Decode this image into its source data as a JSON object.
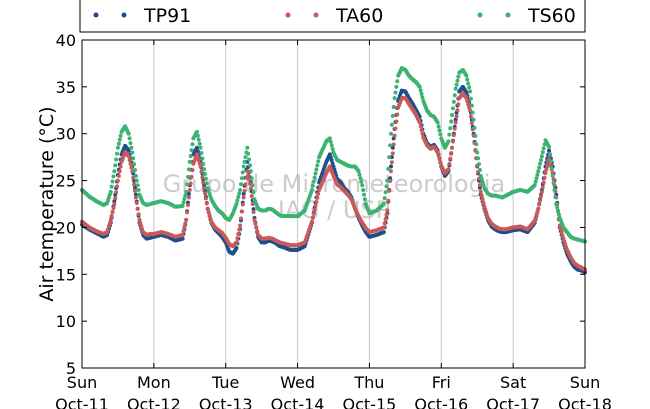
{
  "chart_data": {
    "type": "scatter",
    "title": "",
    "xlabel": "",
    "ylabel": "Air temperature (°C)",
    "ylim": [
      5,
      40
    ],
    "yticks": [
      5,
      10,
      15,
      20,
      25,
      30,
      35,
      40
    ],
    "xlim": [
      0,
      7
    ],
    "x_unit": "days since Sun Oct-11 00:00",
    "xtick_days": [
      "Sun",
      "Mon",
      "Tue",
      "Wed",
      "Thu",
      "Fri",
      "Sat",
      "Sun"
    ],
    "xtick_dates": [
      "Oct-11",
      "Oct-12",
      "Oct-13",
      "Oct-14",
      "Oct-15",
      "Oct-16",
      "Oct-17",
      "Oct-18"
    ],
    "grid": "vertical",
    "legend_position": "top",
    "watermark_line1": "Grupo de Micrometeorologia",
    "watermark_line2": "IAG / USP",
    "series": [
      {
        "name": "TP91",
        "color": "#1f4e8c",
        "x": [
          0.0,
          0.1,
          0.2,
          0.3,
          0.35,
          0.4,
          0.45,
          0.5,
          0.55,
          0.6,
          0.65,
          0.7,
          0.75,
          0.8,
          0.85,
          0.9,
          0.95,
          1.0,
          1.1,
          1.2,
          1.3,
          1.4,
          1.45,
          1.5,
          1.55,
          1.6,
          1.65,
          1.7,
          1.75,
          1.8,
          1.85,
          1.9,
          1.95,
          2.0,
          2.05,
          2.1,
          2.15,
          2.2,
          2.25,
          2.3,
          2.35,
          2.4,
          2.45,
          2.5,
          2.55,
          2.6,
          2.65,
          2.7,
          2.75,
          2.8,
          2.9,
          3.0,
          3.1,
          3.2,
          3.3,
          3.4,
          3.45,
          3.5,
          3.55,
          3.6,
          3.65,
          3.7,
          3.75,
          3.8,
          3.85,
          3.9,
          3.95,
          4.0,
          4.1,
          4.2,
          4.25,
          4.3,
          4.35,
          4.4,
          4.45,
          4.5,
          4.55,
          4.6,
          4.65,
          4.7,
          4.75,
          4.8,
          4.85,
          4.9,
          4.95,
          5.0,
          5.05,
          5.1,
          5.15,
          5.2,
          5.25,
          5.3,
          5.35,
          5.4,
          5.45,
          5.5,
          5.55,
          5.6,
          5.65,
          5.7,
          5.75,
          5.8,
          5.85,
          5.9,
          6.0,
          6.1,
          6.2,
          6.3,
          6.35,
          6.4,
          6.45,
          6.5,
          6.55,
          6.6,
          6.65,
          6.7,
          6.75,
          6.8,
          6.85,
          6.9,
          6.95,
          7.0
        ],
        "y": [
          20.3,
          19.8,
          19.4,
          19.0,
          19.2,
          20.5,
          22.8,
          25.6,
          27.8,
          28.7,
          28.2,
          26.5,
          23.5,
          20.5,
          19.2,
          18.8,
          18.9,
          19.0,
          19.2,
          19.0,
          18.6,
          18.8,
          20.8,
          24.5,
          27.8,
          28.5,
          27.0,
          24.5,
          22.0,
          20.5,
          19.8,
          19.4,
          19.0,
          18.4,
          17.4,
          17.2,
          17.8,
          19.8,
          23.6,
          27.0,
          24.8,
          21.0,
          19.0,
          18.4,
          18.4,
          18.6,
          18.5,
          18.3,
          18.0,
          17.9,
          17.6,
          17.6,
          18.0,
          20.5,
          24.8,
          27.0,
          27.8,
          26.5,
          25.2,
          24.8,
          24.2,
          23.8,
          23.2,
          22.0,
          21.0,
          20.2,
          19.5,
          19.0,
          19.2,
          19.5,
          21.5,
          26.5,
          30.5,
          33.5,
          34.6,
          34.5,
          33.8,
          33.2,
          32.5,
          31.8,
          30.0,
          29.0,
          28.6,
          28.8,
          28.2,
          26.5,
          25.5,
          26.0,
          28.5,
          31.5,
          34.5,
          35.0,
          34.4,
          33.0,
          30.0,
          26.5,
          23.5,
          22.0,
          20.8,
          20.1,
          19.8,
          19.6,
          19.5,
          19.5,
          19.7,
          19.8,
          19.5,
          20.5,
          22.0,
          24.0,
          26.5,
          28.2,
          26.5,
          23.5,
          20.0,
          18.4,
          17.2,
          16.4,
          15.8,
          15.5,
          15.4,
          15.2
        ]
      },
      {
        "name": "TA60",
        "color": "#c85a5a",
        "x": [
          0.0,
          0.1,
          0.2,
          0.3,
          0.35,
          0.4,
          0.45,
          0.5,
          0.55,
          0.6,
          0.65,
          0.7,
          0.75,
          0.8,
          0.85,
          0.9,
          0.95,
          1.0,
          1.1,
          1.2,
          1.3,
          1.4,
          1.45,
          1.5,
          1.55,
          1.6,
          1.65,
          1.7,
          1.75,
          1.8,
          1.85,
          1.9,
          1.95,
          2.0,
          2.05,
          2.1,
          2.15,
          2.2,
          2.25,
          2.3,
          2.35,
          2.4,
          2.45,
          2.5,
          2.55,
          2.6,
          2.65,
          2.7,
          2.75,
          2.8,
          2.9,
          3.0,
          3.1,
          3.2,
          3.3,
          3.4,
          3.45,
          3.5,
          3.55,
          3.6,
          3.65,
          3.7,
          3.75,
          3.8,
          3.85,
          3.9,
          3.95,
          4.0,
          4.1,
          4.2,
          4.25,
          4.3,
          4.35,
          4.4,
          4.45,
          4.5,
          4.55,
          4.6,
          4.65,
          4.7,
          4.75,
          4.8,
          4.85,
          4.9,
          4.95,
          5.0,
          5.05,
          5.1,
          5.15,
          5.2,
          5.25,
          5.3,
          5.35,
          5.4,
          5.45,
          5.5,
          5.55,
          5.6,
          5.65,
          5.7,
          5.75,
          5.8,
          5.85,
          5.9,
          6.0,
          6.1,
          6.2,
          6.3,
          6.35,
          6.4,
          6.45,
          6.5,
          6.55,
          6.6,
          6.65,
          6.7,
          6.75,
          6.8,
          6.85,
          6.9,
          6.95,
          7.0
        ],
        "y": [
          20.6,
          20.0,
          19.6,
          19.3,
          19.5,
          20.8,
          22.5,
          25.0,
          27.0,
          28.0,
          27.6,
          26.0,
          23.2,
          20.8,
          19.5,
          19.2,
          19.3,
          19.3,
          19.5,
          19.3,
          19.0,
          19.2,
          20.8,
          24.0,
          26.8,
          27.8,
          26.5,
          24.2,
          22.0,
          20.6,
          20.0,
          19.7,
          19.4,
          18.9,
          18.2,
          18.0,
          18.4,
          20.2,
          23.2,
          26.0,
          24.2,
          20.8,
          19.2,
          18.8,
          18.8,
          18.9,
          18.8,
          18.6,
          18.4,
          18.3,
          18.1,
          18.1,
          18.4,
          20.6,
          24.0,
          25.8,
          26.5,
          25.5,
          24.6,
          24.3,
          23.9,
          23.5,
          23.0,
          22.0,
          21.2,
          20.5,
          19.9,
          19.5,
          19.7,
          20.0,
          21.8,
          26.0,
          29.8,
          32.8,
          33.8,
          33.8,
          33.2,
          32.6,
          32.0,
          31.2,
          29.6,
          28.8,
          28.4,
          28.6,
          28.0,
          26.6,
          25.8,
          26.2,
          28.5,
          31.2,
          33.8,
          34.3,
          33.8,
          32.5,
          29.8,
          26.6,
          23.8,
          22.2,
          21.0,
          20.4,
          20.1,
          19.9,
          19.8,
          19.8,
          20.0,
          20.1,
          19.8,
          20.7,
          22.0,
          23.8,
          25.8,
          27.3,
          25.8,
          23.2,
          20.2,
          18.8,
          17.6,
          16.8,
          16.2,
          15.9,
          15.7,
          15.5
        ]
      },
      {
        "name": "TS60",
        "color": "#3cb371",
        "x": [
          0.0,
          0.1,
          0.2,
          0.3,
          0.35,
          0.4,
          0.45,
          0.5,
          0.55,
          0.6,
          0.65,
          0.7,
          0.75,
          0.8,
          0.85,
          0.9,
          0.95,
          1.0,
          1.1,
          1.2,
          1.3,
          1.4,
          1.45,
          1.5,
          1.55,
          1.6,
          1.65,
          1.7,
          1.75,
          1.8,
          1.85,
          1.9,
          1.95,
          2.0,
          2.05,
          2.1,
          2.15,
          2.2,
          2.25,
          2.3,
          2.35,
          2.4,
          2.45,
          2.5,
          2.55,
          2.6,
          2.65,
          2.7,
          2.75,
          2.8,
          2.9,
          3.0,
          3.1,
          3.2,
          3.3,
          3.4,
          3.45,
          3.5,
          3.55,
          3.6,
          3.65,
          3.7,
          3.75,
          3.8,
          3.85,
          3.9,
          3.95,
          4.0,
          4.1,
          4.2,
          4.25,
          4.3,
          4.35,
          4.4,
          4.45,
          4.5,
          4.55,
          4.6,
          4.65,
          4.7,
          4.75,
          4.8,
          4.85,
          4.9,
          4.95,
          5.0,
          5.05,
          5.1,
          5.15,
          5.2,
          5.25,
          5.3,
          5.35,
          5.4,
          5.45,
          5.5,
          5.55,
          5.6,
          5.65,
          5.7,
          5.75,
          5.8,
          5.85,
          5.9,
          6.0,
          6.1,
          6.2,
          6.3,
          6.35,
          6.4,
          6.45,
          6.5,
          6.55,
          6.6,
          6.65,
          6.7,
          6.75,
          6.8,
          6.85,
          6.9,
          6.95,
          7.0
        ],
        "y": [
          24.0,
          23.3,
          22.8,
          22.4,
          22.6,
          23.8,
          26.0,
          28.5,
          30.2,
          30.8,
          30.0,
          28.0,
          25.5,
          23.5,
          22.6,
          22.4,
          22.5,
          22.6,
          22.8,
          22.6,
          22.2,
          22.3,
          23.8,
          27.0,
          29.5,
          30.2,
          28.5,
          26.2,
          24.2,
          23.0,
          22.3,
          21.8,
          21.5,
          21.0,
          20.8,
          21.5,
          22.5,
          24.0,
          26.5,
          28.5,
          26.0,
          23.0,
          22.0,
          21.8,
          21.8,
          22.0,
          21.9,
          21.6,
          21.3,
          21.2,
          21.2,
          21.2,
          21.8,
          24.0,
          27.5,
          29.2,
          29.5,
          28.0,
          27.2,
          27.0,
          26.8,
          26.6,
          26.5,
          26.5,
          26.0,
          24.5,
          22.5,
          21.5,
          21.8,
          22.5,
          25.0,
          30.0,
          33.8,
          36.2,
          37.0,
          36.8,
          36.2,
          35.8,
          35.5,
          35.0,
          33.5,
          32.5,
          32.0,
          31.8,
          31.2,
          29.5,
          28.5,
          29.2,
          32.0,
          34.8,
          36.5,
          36.8,
          36.2,
          34.5,
          31.5,
          28.0,
          25.5,
          24.2,
          23.6,
          23.4,
          23.4,
          23.3,
          23.2,
          23.4,
          23.8,
          24.0,
          23.8,
          24.5,
          26.0,
          27.6,
          29.3,
          28.6,
          25.5,
          22.5,
          21.0,
          20.0,
          19.5,
          19.0,
          18.8,
          18.7,
          18.6,
          18.5
        ]
      }
    ]
  }
}
